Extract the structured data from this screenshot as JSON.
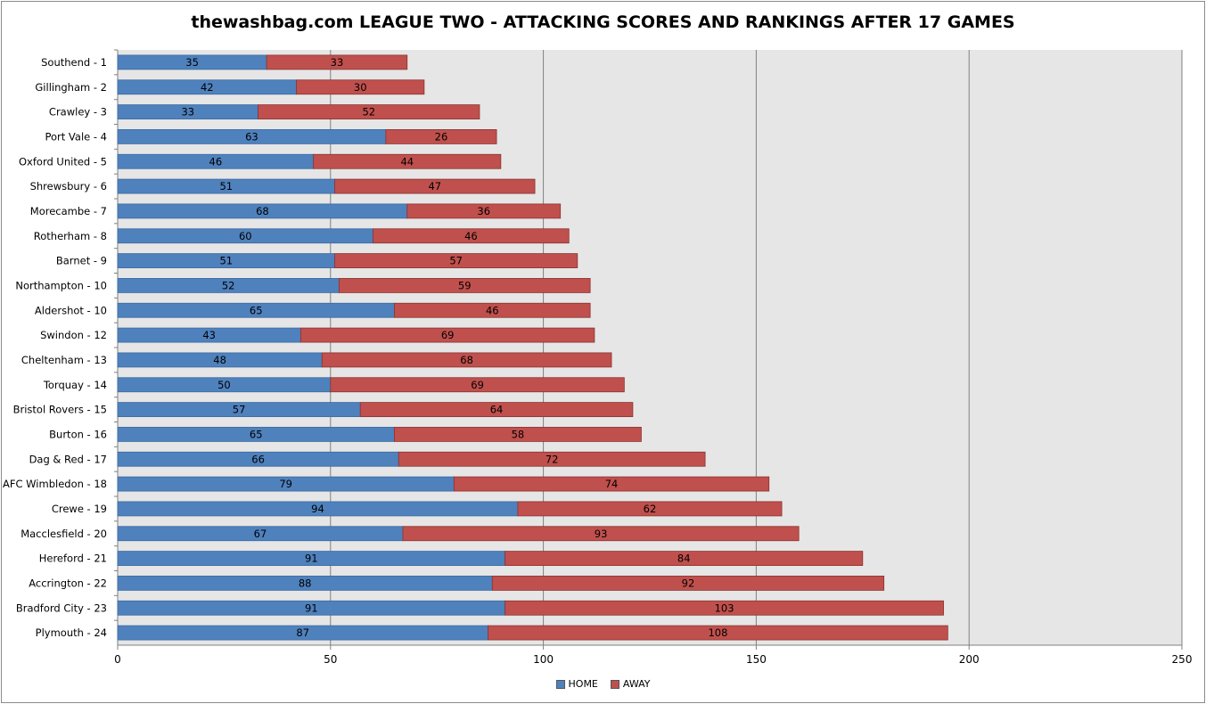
{
  "chart_data": {
    "type": "bar",
    "orientation": "horizontal",
    "stacked": true,
    "title": "thewashbag.com LEAGUE TWO - ATTACKING SCORES AND RANKINGS AFTER 17 GAMES",
    "xlim": [
      0,
      250
    ],
    "x_ticks": [
      0,
      50,
      100,
      150,
      200,
      250
    ],
    "grid": true,
    "legend_position": "bottom",
    "categories": [
      "Southend - 1",
      "Gillingham - 2",
      "Crawley - 3",
      "Port Vale - 4",
      "Oxford United - 5",
      "Shrewsbury - 6",
      "Morecambe - 7",
      "Rotherham - 8",
      "Barnet - 9",
      "Northampton - 10",
      "Aldershot - 10",
      "Swindon - 12",
      "Cheltenham - 13",
      "Torquay - 14",
      "Bristol Rovers - 15",
      "Burton - 16",
      "Dag & Red - 17",
      "AFC Wimbledon - 18",
      "Crewe - 19",
      "Macclesfield - 20",
      "Hereford - 21",
      "Accrington - 22",
      "Bradford City - 23",
      "Plymouth - 24"
    ],
    "series": [
      {
        "name": "HOME",
        "color": "#4f81bd",
        "values": [
          35,
          42,
          33,
          63,
          46,
          51,
          68,
          60,
          51,
          52,
          65,
          43,
          48,
          50,
          57,
          65,
          66,
          79,
          94,
          67,
          91,
          88,
          91,
          87
        ]
      },
      {
        "name": "AWAY",
        "color": "#c0504d",
        "values": [
          33,
          30,
          52,
          26,
          44,
          47,
          36,
          46,
          57,
          59,
          46,
          69,
          68,
          69,
          64,
          58,
          72,
          74,
          62,
          93,
          84,
          92,
          103,
          108
        ]
      }
    ],
    "plot_background": "#e6e6e6"
  }
}
